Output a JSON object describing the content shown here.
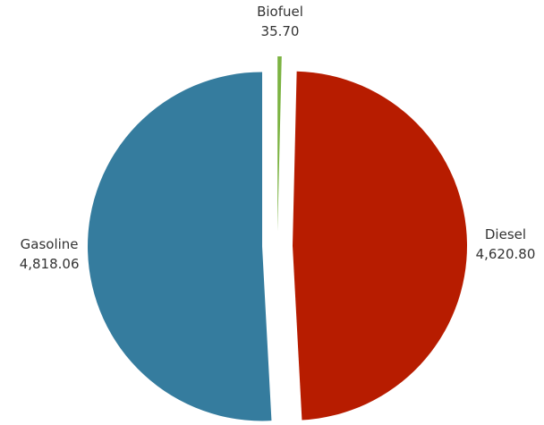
{
  "chart_data": {
    "type": "pie",
    "title": "",
    "slices": [
      {
        "label": "Biofuel",
        "value": 35.7,
        "value_text": "35.70",
        "color": "#7cb342"
      },
      {
        "label": "Diesel",
        "value": 4620.8,
        "value_text": "4,620.80",
        "color": "#b71c00"
      },
      {
        "label": "Gasoline",
        "value": 4818.06,
        "value_text": "4,818.06",
        "color": "#357c9e"
      }
    ],
    "exploded": true,
    "legend": "none"
  }
}
